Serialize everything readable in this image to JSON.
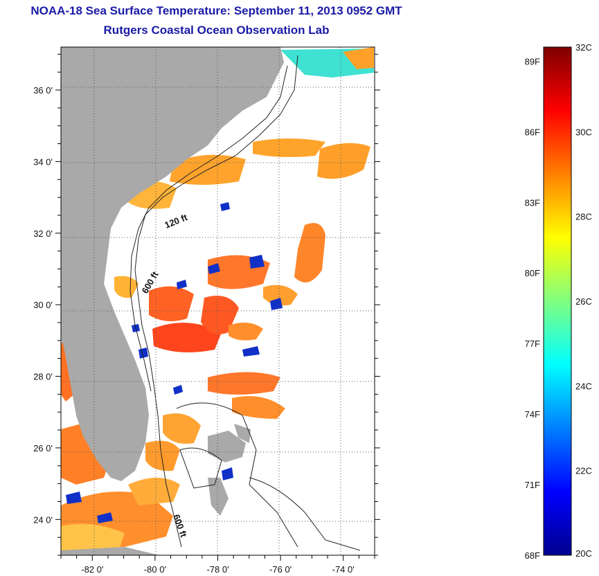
{
  "title_line1": "NOAA-18 Sea Surface Temperature:  September 11, 2013 0952 GMT",
  "title_line2": "Rutgers Coastal Ocean Observation Lab",
  "map": {
    "lon_range": [
      -83.0,
      -73.0
    ],
    "lat_range": [
      23.0,
      37.2
    ],
    "lon_ticks": [
      {
        "value": -82,
        "label": "-82 0'"
      },
      {
        "value": -80,
        "label": "-80 0'"
      },
      {
        "value": -78,
        "label": "-78 0'"
      },
      {
        "value": -76,
        "label": "-76 0'"
      },
      {
        "value": -74,
        "label": "-74 0'"
      }
    ],
    "lat_ticks": [
      {
        "value": 24,
        "label": "24 0'"
      },
      {
        "value": 26,
        "label": "26 0'"
      },
      {
        "value": 28,
        "label": "28 0'"
      },
      {
        "value": 30,
        "label": "30 0'"
      },
      {
        "value": 32,
        "label": "32 0'"
      },
      {
        "value": 34,
        "label": "34 0'"
      },
      {
        "value": 36,
        "label": "36 0'"
      }
    ],
    "contour_labels": [
      "120 ft",
      "600 ft",
      "600 ft"
    ],
    "colors": {
      "land": "#a9a9a9",
      "ocean_no_data": "#ffffff",
      "gridline": "#555555"
    }
  },
  "colorbar": {
    "celsius_range": [
      20,
      32
    ],
    "celsius_labels": [
      "32C",
      "30C",
      "28C",
      "26C",
      "24C",
      "22C",
      "20C"
    ],
    "fahrenheit_labels": [
      "89F",
      "86F",
      "83F",
      "80F",
      "77F",
      "74F",
      "71F",
      "68F"
    ],
    "colormap": [
      "#7f0000",
      "#ff0000",
      "#ff8000",
      "#ffff00",
      "#80ff80",
      "#00ffff",
      "#0080ff",
      "#0000ff",
      "#00008f"
    ]
  }
}
